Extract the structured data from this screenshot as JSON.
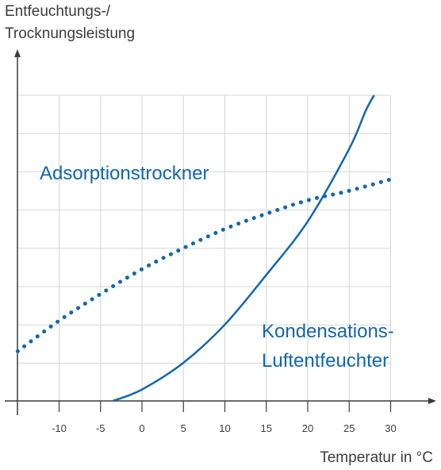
{
  "chart_data": {
    "type": "line",
    "title": "",
    "ylabel_line1": "Entfeuchtungs-/",
    "ylabel_line2": "Trocknungsleistung",
    "xlabel": "Temperatur in °C",
    "xlim": [
      -15,
      32
    ],
    "ylim": [
      0,
      8.2
    ],
    "x_ticks": [
      -10,
      -5,
      0,
      5,
      10,
      15,
      20,
      25,
      30
    ],
    "x_tick_labels": [
      "-10",
      "-5",
      "0",
      "5",
      "10",
      "15",
      "20",
      "25",
      "30"
    ],
    "grid": true,
    "y_tick_labels_shown": false,
    "series_color": "#1466ad",
    "series": [
      {
        "name": "Adsorptionstrockner",
        "style": "dotted",
        "x": [
          -15,
          -10,
          -5,
          0,
          5,
          10,
          15,
          20,
          25,
          30
        ],
        "y": [
          1.3,
          2.1,
          2.8,
          3.45,
          4.0,
          4.5,
          4.9,
          5.25,
          5.5,
          5.8
        ]
      },
      {
        "name_line1": "Kondensations-",
        "name_line2": "Luftentfeuchter",
        "style": "solid",
        "x": [
          -3.5,
          0,
          5,
          10,
          15,
          20,
          25,
          27,
          28
        ],
        "y": [
          0,
          0.3,
          1.0,
          2.0,
          3.3,
          4.7,
          6.6,
          7.6,
          8.0
        ]
      }
    ]
  }
}
